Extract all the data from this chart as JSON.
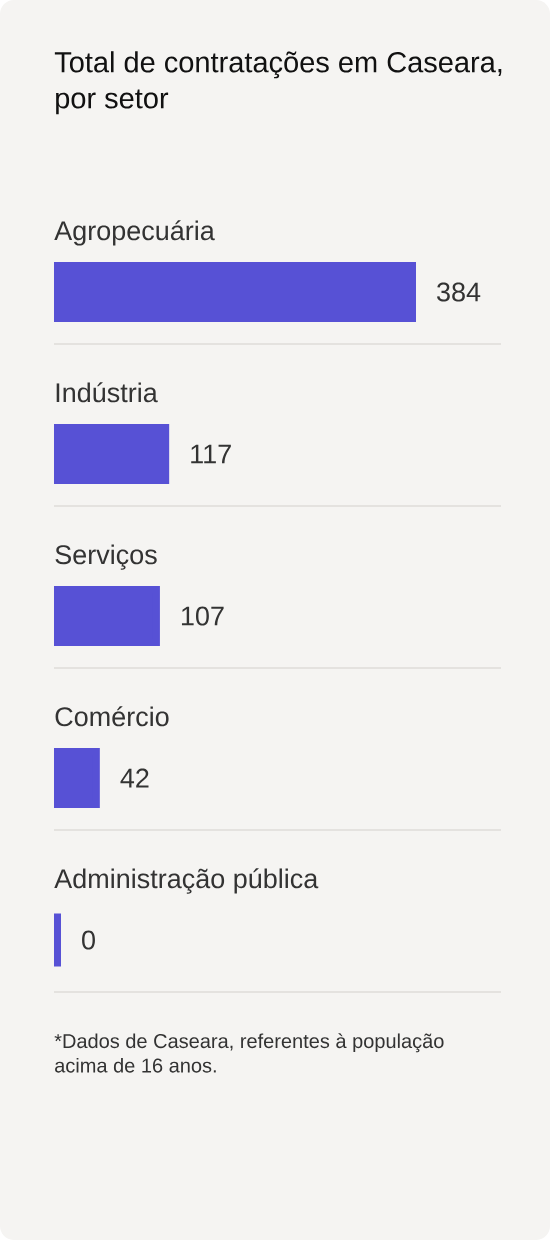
{
  "chart_data": {
    "type": "bar",
    "orientation": "horizontal",
    "title": "Total de contratações em Caseara, por setor",
    "categories": [
      "Agropecuária",
      "Indústria",
      "Serviços",
      "Comércio",
      "Administração pública"
    ],
    "values": [
      384,
      117,
      107,
      42,
      0
    ],
    "color": "#5751d5",
    "data_labels": true,
    "annotations": [
      "*Dados de Caseara, referentes à população acima de 16 anos."
    ]
  }
}
